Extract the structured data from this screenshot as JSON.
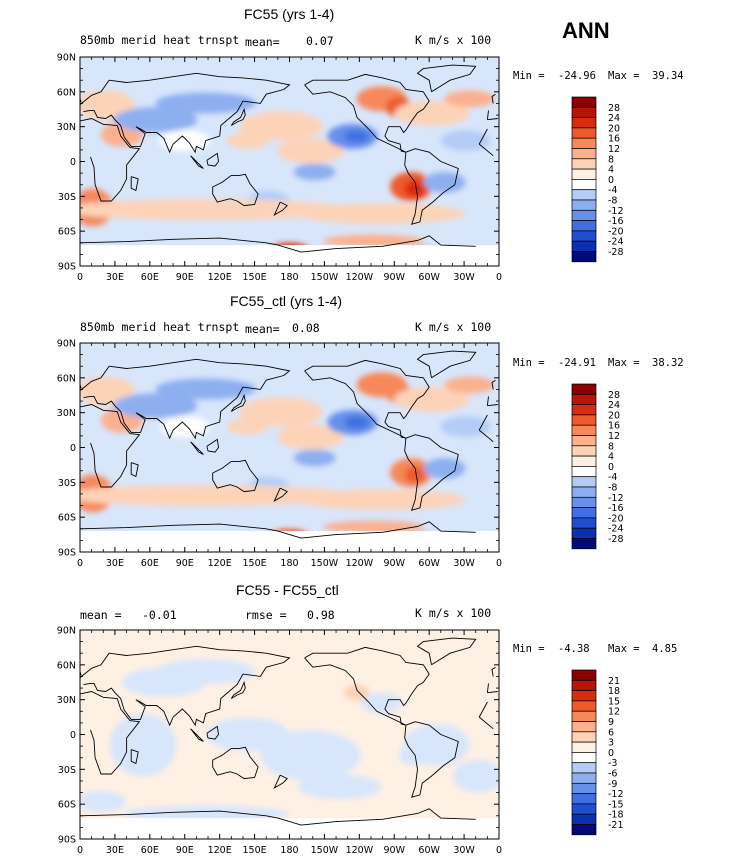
{
  "season": "ANN",
  "panels": [
    {
      "title": "FC55 (yrs 1-4)",
      "left_label": "850mb merid heat trnspt",
      "stat1_label": "mean=",
      "stat1_value": "0.07",
      "stat2_label": "",
      "stat2_value": "",
      "units": "K m/s x 100",
      "min_label": "Min =",
      "min_value": "-24.96",
      "max_label": "Max =",
      "max_value": "39.34",
      "colorbar_labels": [
        "28",
        "24",
        "20",
        "16",
        "12",
        "8",
        "4",
        "0",
        "-4",
        "-8",
        "-12",
        "-16",
        "-20",
        "-24",
        "-28"
      ]
    },
    {
      "title": "FC55_ctl (yrs 1-4)",
      "left_label": "850mb merid heat trnspt",
      "stat1_label": "mean=",
      "stat1_value": "0.08",
      "stat2_label": "",
      "stat2_value": "",
      "units": "K m/s x 100",
      "min_label": "Min =",
      "min_value": "-24.91",
      "max_label": "Max =",
      "max_value": "38.32",
      "colorbar_labels": [
        "28",
        "24",
        "20",
        "16",
        "12",
        "8",
        "4",
        "0",
        "-4",
        "-8",
        "-12",
        "-16",
        "-20",
        "-24",
        "-28"
      ]
    },
    {
      "title": "FC55 - FC55_ctl",
      "left_label": "",
      "stat1_label": "mean =",
      "stat1_value": "-0.01",
      "stat2_label": "rmse =",
      "stat2_value": "0.98",
      "units": "K m/s x 100",
      "min_label": "Min =",
      "min_value": "-4.38",
      "max_label": "Max =",
      "max_value": "4.85",
      "colorbar_labels": [
        "21",
        "18",
        "15",
        "12",
        "9",
        "6",
        "3",
        "0",
        "-3",
        "-6",
        "-9",
        "-12",
        "-15",
        "-18",
        "-21"
      ]
    }
  ],
  "lat_labels": [
    "90N",
    "60N",
    "30N",
    "0",
    "30S",
    "60S",
    "90S"
  ],
  "lon_labels": [
    "0",
    "30E",
    "60E",
    "90E",
    "120E",
    "150E",
    "180",
    "150W",
    "120W",
    "90W",
    "60W",
    "30W",
    "0"
  ],
  "colors": {
    "scale": [
      "#8b0000",
      "#b81408",
      "#d92b0e",
      "#ef5a2a",
      "#f7885a",
      "#fbb08e",
      "#fdd3b8",
      "#fff0e4",
      "#ffffff",
      "#d8e6fb",
      "#b4ccf6",
      "#8daff0",
      "#6690ea",
      "#3f6fe0",
      "#1f4fd0",
      "#0a2fb0",
      "#000a7a"
    ]
  }
}
